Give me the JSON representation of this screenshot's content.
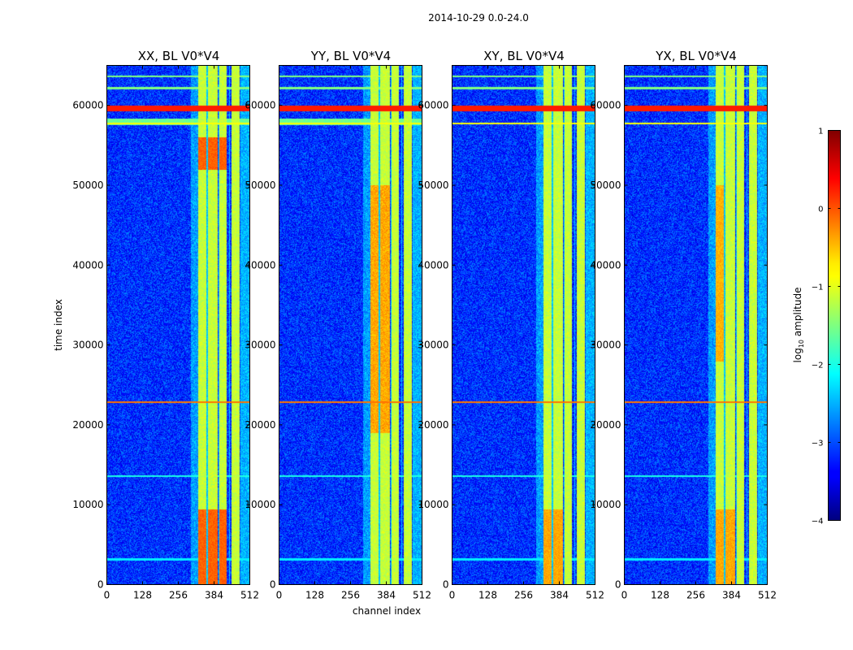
{
  "chart_data": {
    "type": "heatmap",
    "suptitle": "2014-10-29 0.0-24.0",
    "xlabel": "channel index",
    "ylabel": "time index",
    "xlim": [
      0,
      512
    ],
    "ylim": [
      0,
      65000
    ],
    "xticks": [
      0,
      128,
      256,
      384,
      512
    ],
    "yticks": [
      0,
      10000,
      20000,
      30000,
      40000,
      50000,
      60000
    ],
    "panels": [
      {
        "title": "XX, BL V0*V4",
        "variant": "XX"
      },
      {
        "title": "YY, BL V0*V4",
        "variant": "YY"
      },
      {
        "title": "XY, BL V0*V4",
        "variant": "XY"
      },
      {
        "title": "YX, BL V0*V4",
        "variant": "YX"
      }
    ],
    "colorbar": {
      "label": "log",
      "label_sub": "10",
      "label_rest": " amplitude",
      "range": [
        -4,
        1
      ],
      "ticks": [
        -4,
        -3,
        -2,
        -1,
        0,
        1
      ],
      "tick_labels": [
        "−4",
        "−3",
        "−2",
        "−1",
        "0",
        "1"
      ],
      "colormap": "jet"
    },
    "bright_band_channels": [
      [
        327,
        358
      ],
      [
        362,
        395
      ],
      [
        402,
        428
      ],
      [
        445,
        475
      ]
    ],
    "bright_band_gaps": [
      358,
      400,
      438,
      478
    ],
    "rfi_rows": [
      {
        "time": 59700,
        "level": 0.25
      },
      {
        "time": 57800,
        "level": -0.9
      },
      {
        "time": 62200,
        "level": -1.5
      },
      {
        "time": 63700,
        "level": -1.5
      },
      {
        "time": 22900,
        "level": -0.2
      },
      {
        "time": 13600,
        "level": -2.0
      },
      {
        "time": 3200,
        "level": -2.2
      }
    ]
  }
}
